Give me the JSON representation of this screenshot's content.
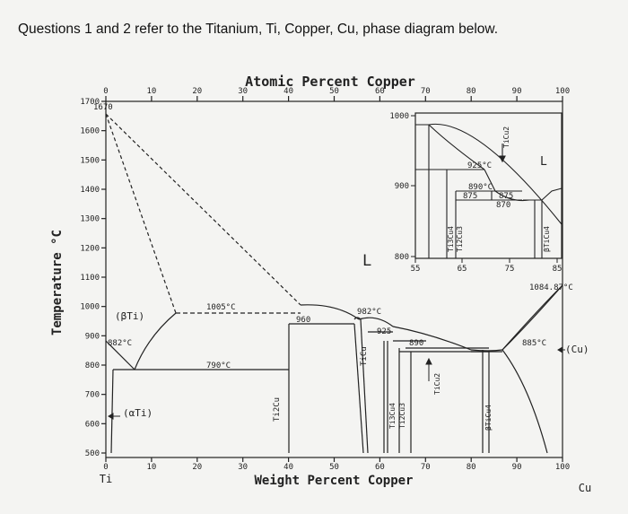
{
  "question": "Questions 1 and 2 refer to the Titanium, Ti, Copper, Cu, phase diagram below.",
  "top_axis_title": "Atomic Percent Copper",
  "bottom_axis_title": "Weight Percent Copper",
  "y_axis_title": "Temperature °C",
  "top_ticks": [
    "0",
    "10",
    "20",
    "30",
    "40",
    "50",
    "60",
    "70",
    "80",
    "90",
    "100"
  ],
  "bottom_ticks": [
    "0",
    "10",
    "20",
    "30",
    "40",
    "50",
    "60",
    "70",
    "80",
    "90",
    "100"
  ],
  "y_ticks": [
    "1700",
    "1600",
    "1500",
    "1400",
    "1300",
    "1200",
    "1100",
    "1000",
    "900",
    "800",
    "700",
    "600",
    "500"
  ],
  "element_left": "Ti",
  "element_right": "Cu",
  "phase_labels": {
    "beta_ti": "(βTi)",
    "alpha_ti": "(αTi)",
    "liquid": "L",
    "cu": "(Cu)",
    "ti2cu": "Ti2Cu",
    "ticu": "TiCu",
    "ti3cu4": "Ti3Cu4",
    "ti2cu3": "Ti2Cu3",
    "ticu2": "TiCu2",
    "beta_ticu4": "βTiCu4"
  },
  "temperature_labels": {
    "t1670": "1670",
    "t1005": "1005°C",
    "t960": "960",
    "t982": "982°C",
    "t925": "925",
    "t890": "890",
    "t882": "882°C",
    "t790": "790°C",
    "t885": "885°C",
    "t1084": "1084.87°C"
  },
  "inset": {
    "y_ticks": [
      "1000",
      "900",
      "800"
    ],
    "x_ticks": [
      "55",
      "65",
      "75",
      "85"
    ],
    "t925": "925°C",
    "t890": "890°C",
    "t875a": "875",
    "t875b": "875",
    "t870": "870",
    "liquid": "L",
    "ticu2": "TiCu2",
    "ti3cu4": "Ti3Cu4",
    "ti2cu3": "Ti2Cu3",
    "beta_ticu4": "βTiCu4"
  }
}
